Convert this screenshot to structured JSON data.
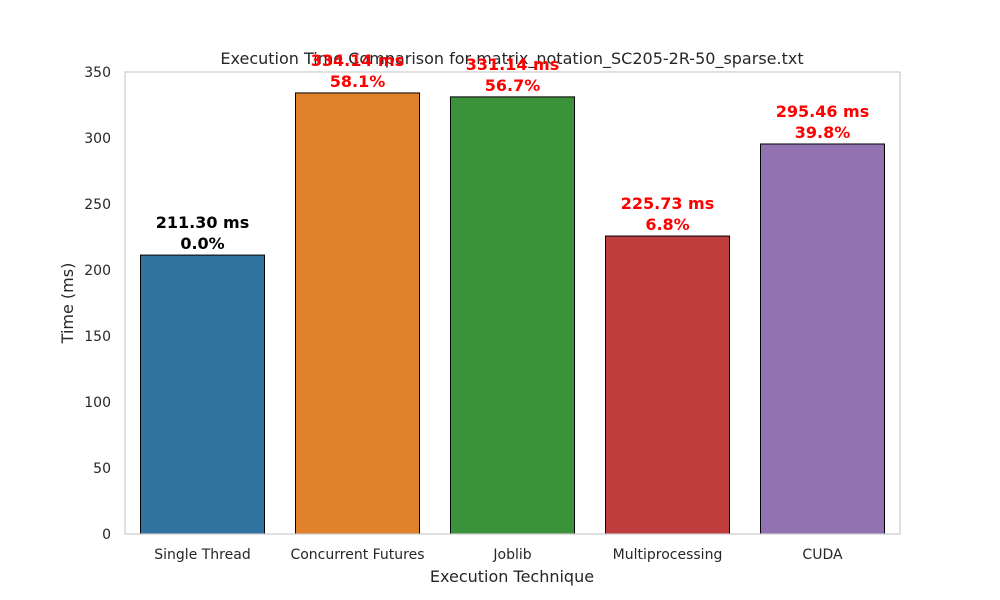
{
  "chart_data": {
    "type": "bar",
    "title": "Execution Time Comparison for matrix_notation_SC205-2R-50_sparse.txt",
    "xlabel": "Execution Technique",
    "ylabel": "Time (ms)",
    "ylim": [
      0,
      350
    ],
    "yticks": [
      0,
      50,
      100,
      150,
      200,
      250,
      300,
      350
    ],
    "grid": false,
    "categories": [
      "Single Thread",
      "Concurrent Futures",
      "Joblib",
      "Multiprocessing",
      "CUDA"
    ],
    "values": [
      211.3,
      334.14,
      331.14,
      225.73,
      295.46
    ],
    "colors": [
      "#3274a1",
      "#e1812c",
      "#3a923a",
      "#c03d3e",
      "#9372b2"
    ],
    "data_labels": [
      {
        "time": "211.30 ms",
        "pct": "0.0%",
        "color": "#000000"
      },
      {
        "time": "334.14 ms",
        "pct": "58.1%",
        "color": "#ff0000"
      },
      {
        "time": "331.14 ms",
        "pct": "56.7%",
        "color": "#ff0000"
      },
      {
        "time": "225.73 ms",
        "pct": "6.8%",
        "color": "#ff0000"
      },
      {
        "time": "295.46 ms",
        "pct": "39.8%",
        "color": "#ff0000"
      }
    ]
  }
}
